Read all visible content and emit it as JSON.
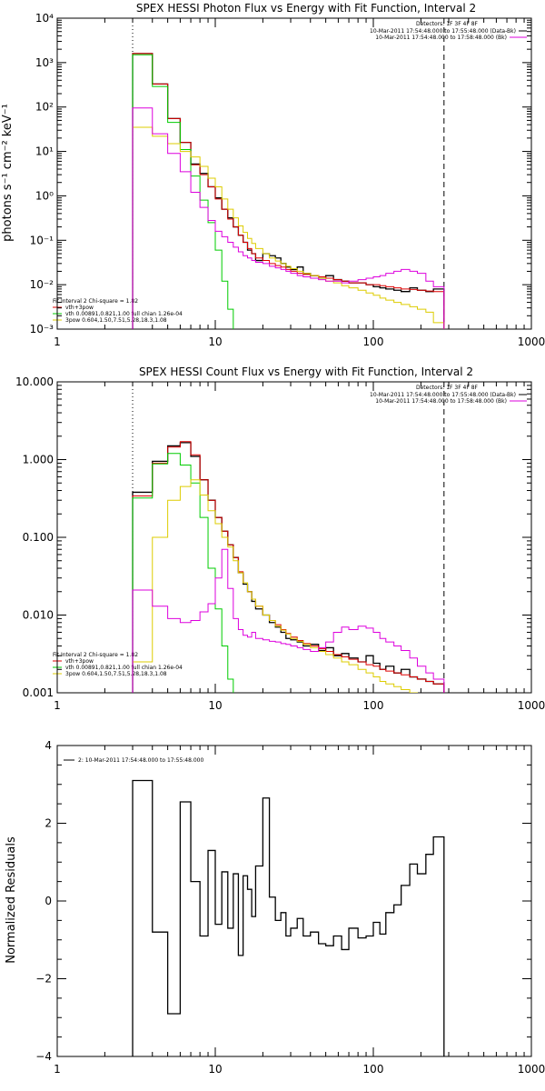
{
  "chart_data": [
    {
      "type": "line",
      "title": "SPEX HESSI Photon Flux vs Energy with Fit Function, Interval 2",
      "xlabel": "",
      "ylabel": "photons s⁻¹ cm⁻² keV⁻¹",
      "xscale": "log",
      "yscale": "log",
      "xlim": [
        1,
        1000
      ],
      "ylim": [
        0.001,
        10000
      ],
      "xticks": [
        "1",
        "10",
        "100",
        "1000"
      ],
      "yticks": [
        "10⁻³",
        "10⁻²",
        "10⁻¹",
        "10⁰",
        "10¹",
        "10²",
        "10³",
        "10⁴"
      ],
      "vlines": [
        {
          "x": 3.0,
          "style": "dotted"
        },
        {
          "x": 280,
          "style": "dashed"
        }
      ],
      "legend_top_right": [
        "Detectors: 1F 3F 4F 8F",
        "10-Mar-2011 17:54:48.000 to 17:55:48.000 (Data-Bk)",
        "10-Mar-2011 17:54:48.000 to 17:58:48.000 (Bk)"
      ],
      "legend_bottom_left": [
        "Fit Interval 2   Chi-square = 1.82",
        "vth+3pow",
        "vth 0.00891,0.821,1.00  full chian 1.26e-04",
        "3pow 0.604,1.50,7.51,5.28,18.3,1.08"
      ],
      "series": [
        {
          "name": "Data-Bk",
          "color": "#000000",
          "edges": [
            3.0,
            4.0,
            5.0,
            6.0,
            7.0,
            8.0,
            9.0,
            10.0,
            11.0,
            12.0,
            13.0,
            14.0,
            15.0,
            16.0,
            17.0,
            18.0,
            20.0,
            22.0,
            24.0,
            26.0,
            28.0,
            30.0,
            33.0,
            36.0,
            40.0,
            45.0,
            50.0,
            56.0,
            63.0,
            70.0,
            80.0,
            90.0,
            100.0,
            110.0,
            120.0,
            135.0,
            150.0,
            170.0,
            190.0,
            215.0,
            240.0,
            280.0
          ],
          "values": [
            1600,
            330,
            55,
            16,
            5.2,
            3.2,
            1.6,
            0.9,
            0.5,
            0.32,
            0.2,
            0.13,
            0.09,
            0.06,
            0.05,
            0.035,
            0.05,
            0.045,
            0.04,
            0.03,
            0.025,
            0.022,
            0.025,
            0.018,
            0.016,
            0.014,
            0.016,
            0.013,
            0.012,
            0.011,
            0.011,
            0.01,
            0.009,
            0.0085,
            0.008,
            0.0075,
            0.007,
            0.0085,
            0.0075,
            0.007,
            0.008
          ]
        },
        {
          "name": "vth+3pow",
          "color": "#dd0000",
          "edges": [
            3.0,
            4.0,
            5.0,
            6.0,
            7.0,
            8.0,
            9.0,
            10.0,
            11.0,
            12.0,
            13.0,
            14.0,
            15.0,
            16.0,
            17.0,
            18.0,
            20.0,
            22.0,
            24.0,
            26.0,
            28.0,
            30.0,
            33.0,
            36.0,
            40.0,
            45.0,
            50.0,
            56.0,
            63.0,
            70.0,
            80.0,
            90.0,
            100.0,
            110.0,
            120.0,
            135.0,
            150.0,
            170.0,
            190.0,
            215.0,
            240.0,
            280.0
          ],
          "values": [
            1600,
            330,
            55,
            16,
            5.0,
            3.0,
            1.6,
            0.85,
            0.5,
            0.3,
            0.2,
            0.13,
            0.09,
            0.065,
            0.05,
            0.04,
            0.035,
            0.03,
            0.027,
            0.025,
            0.022,
            0.02,
            0.018,
            0.017,
            0.016,
            0.015,
            0.014,
            0.013,
            0.012,
            0.011,
            0.011,
            0.01,
            0.01,
            0.0095,
            0.009,
            0.0085,
            0.008,
            0.0078,
            0.0075,
            0.0072,
            0.007
          ]
        },
        {
          "name": "vth",
          "color": "#00cc00",
          "edges": [
            3.0,
            4.0,
            5.0,
            6.0,
            7.0,
            8.0,
            9.0,
            10.0,
            11.0,
            12.0,
            13.0,
            14.0
          ],
          "values": [
            1500,
            290,
            45,
            11,
            2.8,
            0.8,
            0.25,
            0.06,
            0.012,
            0.0028,
            0.0008
          ]
        },
        {
          "name": "3pow",
          "color": "#ddcc00",
          "edges": [
            3.0,
            4.0,
            5.0,
            6.0,
            7.0,
            8.0,
            9.0,
            10.0,
            11.0,
            12.0,
            13.0,
            14.0,
            15.0,
            16.0,
            17.0,
            18.0,
            20.0,
            22.0,
            24.0,
            26.0,
            28.0,
            30.0,
            33.0,
            36.0,
            40.0,
            45.0,
            50.0,
            56.0,
            63.0,
            70.0,
            80.0,
            90.0,
            100.0,
            110.0,
            120.0,
            135.0,
            150.0,
            170.0,
            190.0,
            215.0,
            240.0,
            280.0
          ],
          "values": [
            35,
            22,
            15,
            10,
            7.5,
            4.6,
            2.5,
            1.6,
            0.85,
            0.5,
            0.32,
            0.21,
            0.15,
            0.11,
            0.085,
            0.065,
            0.05,
            0.04,
            0.034,
            0.03,
            0.026,
            0.023,
            0.02,
            0.018,
            0.016,
            0.014,
            0.012,
            0.011,
            0.0095,
            0.0085,
            0.0075,
            0.0065,
            0.0058,
            0.005,
            0.0045,
            0.004,
            0.0036,
            0.0032,
            0.0028,
            0.0024,
            0.0014
          ]
        },
        {
          "name": "Bk",
          "color": "#dd00dd",
          "edges": [
            3.0,
            4.0,
            5.0,
            6.0,
            7.0,
            8.0,
            9.0,
            10.0,
            11.0,
            12.0,
            13.0,
            14.0,
            15.0,
            16.0,
            17.0,
            18.0,
            20.0,
            22.0,
            24.0,
            26.0,
            28.0,
            30.0,
            33.0,
            36.0,
            40.0,
            45.0,
            50.0,
            56.0,
            63.0,
            70.0,
            80.0,
            90.0,
            100.0,
            110.0,
            120.0,
            135.0,
            150.0,
            170.0,
            190.0,
            215.0,
            240.0,
            280.0
          ],
          "values": [
            95,
            25,
            9,
            3.5,
            1.2,
            0.55,
            0.28,
            0.16,
            0.12,
            0.09,
            0.07,
            0.055,
            0.045,
            0.04,
            0.035,
            0.032,
            0.03,
            0.026,
            0.024,
            0.022,
            0.02,
            0.018,
            0.016,
            0.015,
            0.014,
            0.013,
            0.012,
            0.012,
            0.011,
            0.012,
            0.013,
            0.014,
            0.015,
            0.016,
            0.018,
            0.02,
            0.022,
            0.02,
            0.018,
            0.012,
            0.009
          ]
        }
      ]
    },
    {
      "type": "line",
      "title": "SPEX HESSI Count Flux vs Energy with Fit Function, Interval 2",
      "xlabel": "",
      "ylabel": "",
      "xscale": "log",
      "yscale": "log",
      "xlim": [
        1,
        1000
      ],
      "ylim": [
        0.001,
        10
      ],
      "xticks": [
        "1",
        "10",
        "100",
        "1000"
      ],
      "yticks": [
        "0.001",
        "0.010",
        "0.100",
        "1.000",
        "10.000"
      ],
      "vlines": [
        {
          "x": 3.0,
          "style": "dotted"
        },
        {
          "x": 280,
          "style": "dashed"
        }
      ],
      "legend_top_right": [
        "Detectors: 1F 3F 4F 8F",
        "10-Mar-2011 17:54:48.000 to 17:55:48.000 (Data-Bk)",
        "10-Mar-2011 17:54:48.000 to 17:58:48.000 (Bk)"
      ],
      "legend_bottom_left": [
        "Fit Interval 2   Chi-square = 1.82",
        "vth+3pow",
        "vth 0.00891,0.821,1.00  full chian 1.26e-04",
        "3pow 0.604,1.50,7.51,5.28,18.3,1.08"
      ],
      "series": [
        {
          "name": "Data-Bk",
          "color": "#000000",
          "edges": [
            3.0,
            4.0,
            5.0,
            6.0,
            7.0,
            8.0,
            9.0,
            10.0,
            11.0,
            12.0,
            13.0,
            14.0,
            15.0,
            16.0,
            17.0,
            18.0,
            20.0,
            22.0,
            24.0,
            26.0,
            28.0,
            30.0,
            33.0,
            36.0,
            40.0,
            45.0,
            50.0,
            56.0,
            63.0,
            70.0,
            80.0,
            90.0,
            100.0,
            110.0,
            120.0,
            135.0,
            150.0,
            170.0,
            190.0,
            215.0,
            240.0,
            280.0
          ],
          "values": [
            0.38,
            0.95,
            1.5,
            1.65,
            1.1,
            0.55,
            0.3,
            0.18,
            0.12,
            0.08,
            0.055,
            0.035,
            0.025,
            0.02,
            0.015,
            0.012,
            0.01,
            0.008,
            0.007,
            0.006,
            0.005,
            0.0048,
            0.0045,
            0.004,
            0.0042,
            0.0035,
            0.0038,
            0.003,
            0.0032,
            0.0028,
            0.0025,
            0.003,
            0.0024,
            0.002,
            0.0022,
            0.0018,
            0.002,
            0.0016,
            0.0015,
            0.0014,
            0.0013
          ]
        },
        {
          "name": "vth+3pow",
          "color": "#dd0000",
          "edges": [
            3.0,
            4.0,
            5.0,
            6.0,
            7.0,
            8.0,
            9.0,
            10.0,
            11.0,
            12.0,
            13.0,
            14.0,
            15.0,
            16.0,
            17.0,
            18.0,
            20.0,
            22.0,
            24.0,
            26.0,
            28.0,
            30.0,
            33.0,
            36.0,
            40.0,
            45.0,
            50.0,
            56.0,
            63.0,
            70.0,
            80.0,
            90.0,
            100.0,
            110.0,
            120.0,
            135.0,
            150.0,
            170.0,
            190.0,
            215.0,
            240.0,
            280.0
          ],
          "values": [
            0.34,
            0.9,
            1.45,
            1.7,
            1.15,
            0.55,
            0.3,
            0.18,
            0.12,
            0.08,
            0.055,
            0.036,
            0.026,
            0.02,
            0.016,
            0.013,
            0.01,
            0.0085,
            0.0075,
            0.0065,
            0.0058,
            0.0052,
            0.0047,
            0.0043,
            0.004,
            0.0037,
            0.0034,
            0.0031,
            0.0029,
            0.0027,
            0.0025,
            0.0023,
            0.0022,
            0.002,
            0.0019,
            0.0018,
            0.0017,
            0.0016,
            0.0015,
            0.0014,
            0.0013
          ]
        },
        {
          "name": "vth",
          "color": "#00cc00",
          "edges": [
            3.0,
            4.0,
            5.0,
            6.0,
            7.0,
            8.0,
            9.0,
            10.0,
            11.0,
            12.0,
            13.0
          ],
          "values": [
            0.32,
            0.88,
            1.2,
            0.85,
            0.5,
            0.18,
            0.04,
            0.012,
            0.004,
            0.0015
          ]
        },
        {
          "name": "3pow",
          "color": "#ddcc00",
          "edges": [
            3.0,
            4.0,
            5.0,
            6.0,
            7.0,
            8.0,
            9.0,
            10.0,
            11.0,
            12.0,
            13.0,
            14.0,
            15.0,
            16.0,
            17.0,
            18.0,
            20.0,
            22.0,
            24.0,
            26.0,
            28.0,
            30.0,
            33.0,
            36.0,
            40.0,
            45.0,
            50.0,
            56.0,
            63.0,
            70.0,
            80.0,
            90.0,
            100.0,
            110.0,
            120.0,
            135.0,
            150.0,
            170.0,
            190.0,
            215.0,
            240.0,
            280.0
          ],
          "values": [
            0.0025,
            0.1,
            0.3,
            0.45,
            0.55,
            0.35,
            0.22,
            0.15,
            0.1,
            0.075,
            0.05,
            0.035,
            0.026,
            0.02,
            0.016,
            0.013,
            0.01,
            0.0085,
            0.0072,
            0.0064,
            0.0057,
            0.005,
            0.0046,
            0.0042,
            0.0038,
            0.0034,
            0.0031,
            0.0028,
            0.0025,
            0.0023,
            0.002,
            0.0018,
            0.0016,
            0.0014,
            0.0013,
            0.0012,
            0.0011,
            0.001,
            0.0009,
            0.0008,
            0.0007
          ]
        },
        {
          "name": "Bk",
          "color": "#dd00dd",
          "edges": [
            3.0,
            4.0,
            5.0,
            6.0,
            7.0,
            8.0,
            9.0,
            10.0,
            11.0,
            12.0,
            13.0,
            14.0,
            15.0,
            16.0,
            17.0,
            18.0,
            20.0,
            22.0,
            24.0,
            26.0,
            28.0,
            30.0,
            33.0,
            36.0,
            40.0,
            45.0,
            50.0,
            56.0,
            63.0,
            70.0,
            80.0,
            90.0,
            100.0,
            110.0,
            120.0,
            135.0,
            150.0,
            170.0,
            190.0,
            215.0,
            240.0,
            280.0
          ],
          "values": [
            0.021,
            0.013,
            0.009,
            0.008,
            0.0085,
            0.011,
            0.014,
            0.03,
            0.07,
            0.022,
            0.009,
            0.0065,
            0.0055,
            0.0052,
            0.006,
            0.005,
            0.0048,
            0.0046,
            0.0045,
            0.0043,
            0.0042,
            0.004,
            0.0038,
            0.0036,
            0.0034,
            0.0038,
            0.0045,
            0.006,
            0.007,
            0.0065,
            0.0072,
            0.0068,
            0.006,
            0.005,
            0.0045,
            0.004,
            0.0035,
            0.0028,
            0.0022,
            0.0018,
            0.0015
          ]
        }
      ]
    },
    {
      "type": "line",
      "title": "",
      "xlabel": "",
      "ylabel": "Normalized Residuals",
      "xscale": "log",
      "yscale": "linear",
      "xlim": [
        1,
        1000
      ],
      "ylim": [
        -4,
        4
      ],
      "xticks": [
        "1",
        "10",
        "100",
        "1000"
      ],
      "yticks": [
        "−4",
        "−2",
        "0",
        "2",
        "4"
      ],
      "legend_top_left": [
        "2: 10-Mar-2011 17:54:48.000 to 17:55:48.000"
      ],
      "series": [
        {
          "name": "2: 10-Mar-2011 17:54:48.000 to 17:55:48.000",
          "color": "#000000",
          "edges": [
            3.0,
            4.0,
            5.0,
            6.0,
            7.0,
            8.0,
            9.0,
            10.0,
            11.0,
            12.0,
            13.0,
            14.0,
            15.0,
            16.0,
            17.0,
            18.0,
            20.0,
            22.0,
            24.0,
            26.0,
            28.0,
            30.0,
            33.0,
            36.0,
            40.0,
            45.0,
            50.0,
            56.0,
            63.0,
            70.0,
            80.0,
            90.0,
            100.0,
            110.0,
            120.0,
            135.0,
            150.0,
            170.0,
            190.0,
            215.0,
            240.0,
            280.0
          ],
          "values": [
            3.1,
            -0.8,
            -2.9,
            2.55,
            0.5,
            -0.9,
            1.3,
            -0.6,
            0.75,
            -0.7,
            0.7,
            -1.4,
            0.65,
            0.3,
            -0.4,
            0.9,
            2.65,
            0.1,
            -0.5,
            -0.3,
            -0.9,
            -0.7,
            -0.45,
            -0.9,
            -0.8,
            -1.1,
            -1.15,
            -0.9,
            -1.25,
            -0.7,
            -0.95,
            -0.9,
            -0.55,
            -0.85,
            -0.3,
            -0.1,
            0.4,
            0.95,
            0.7,
            1.2,
            1.65
          ]
        }
      ]
    }
  ]
}
